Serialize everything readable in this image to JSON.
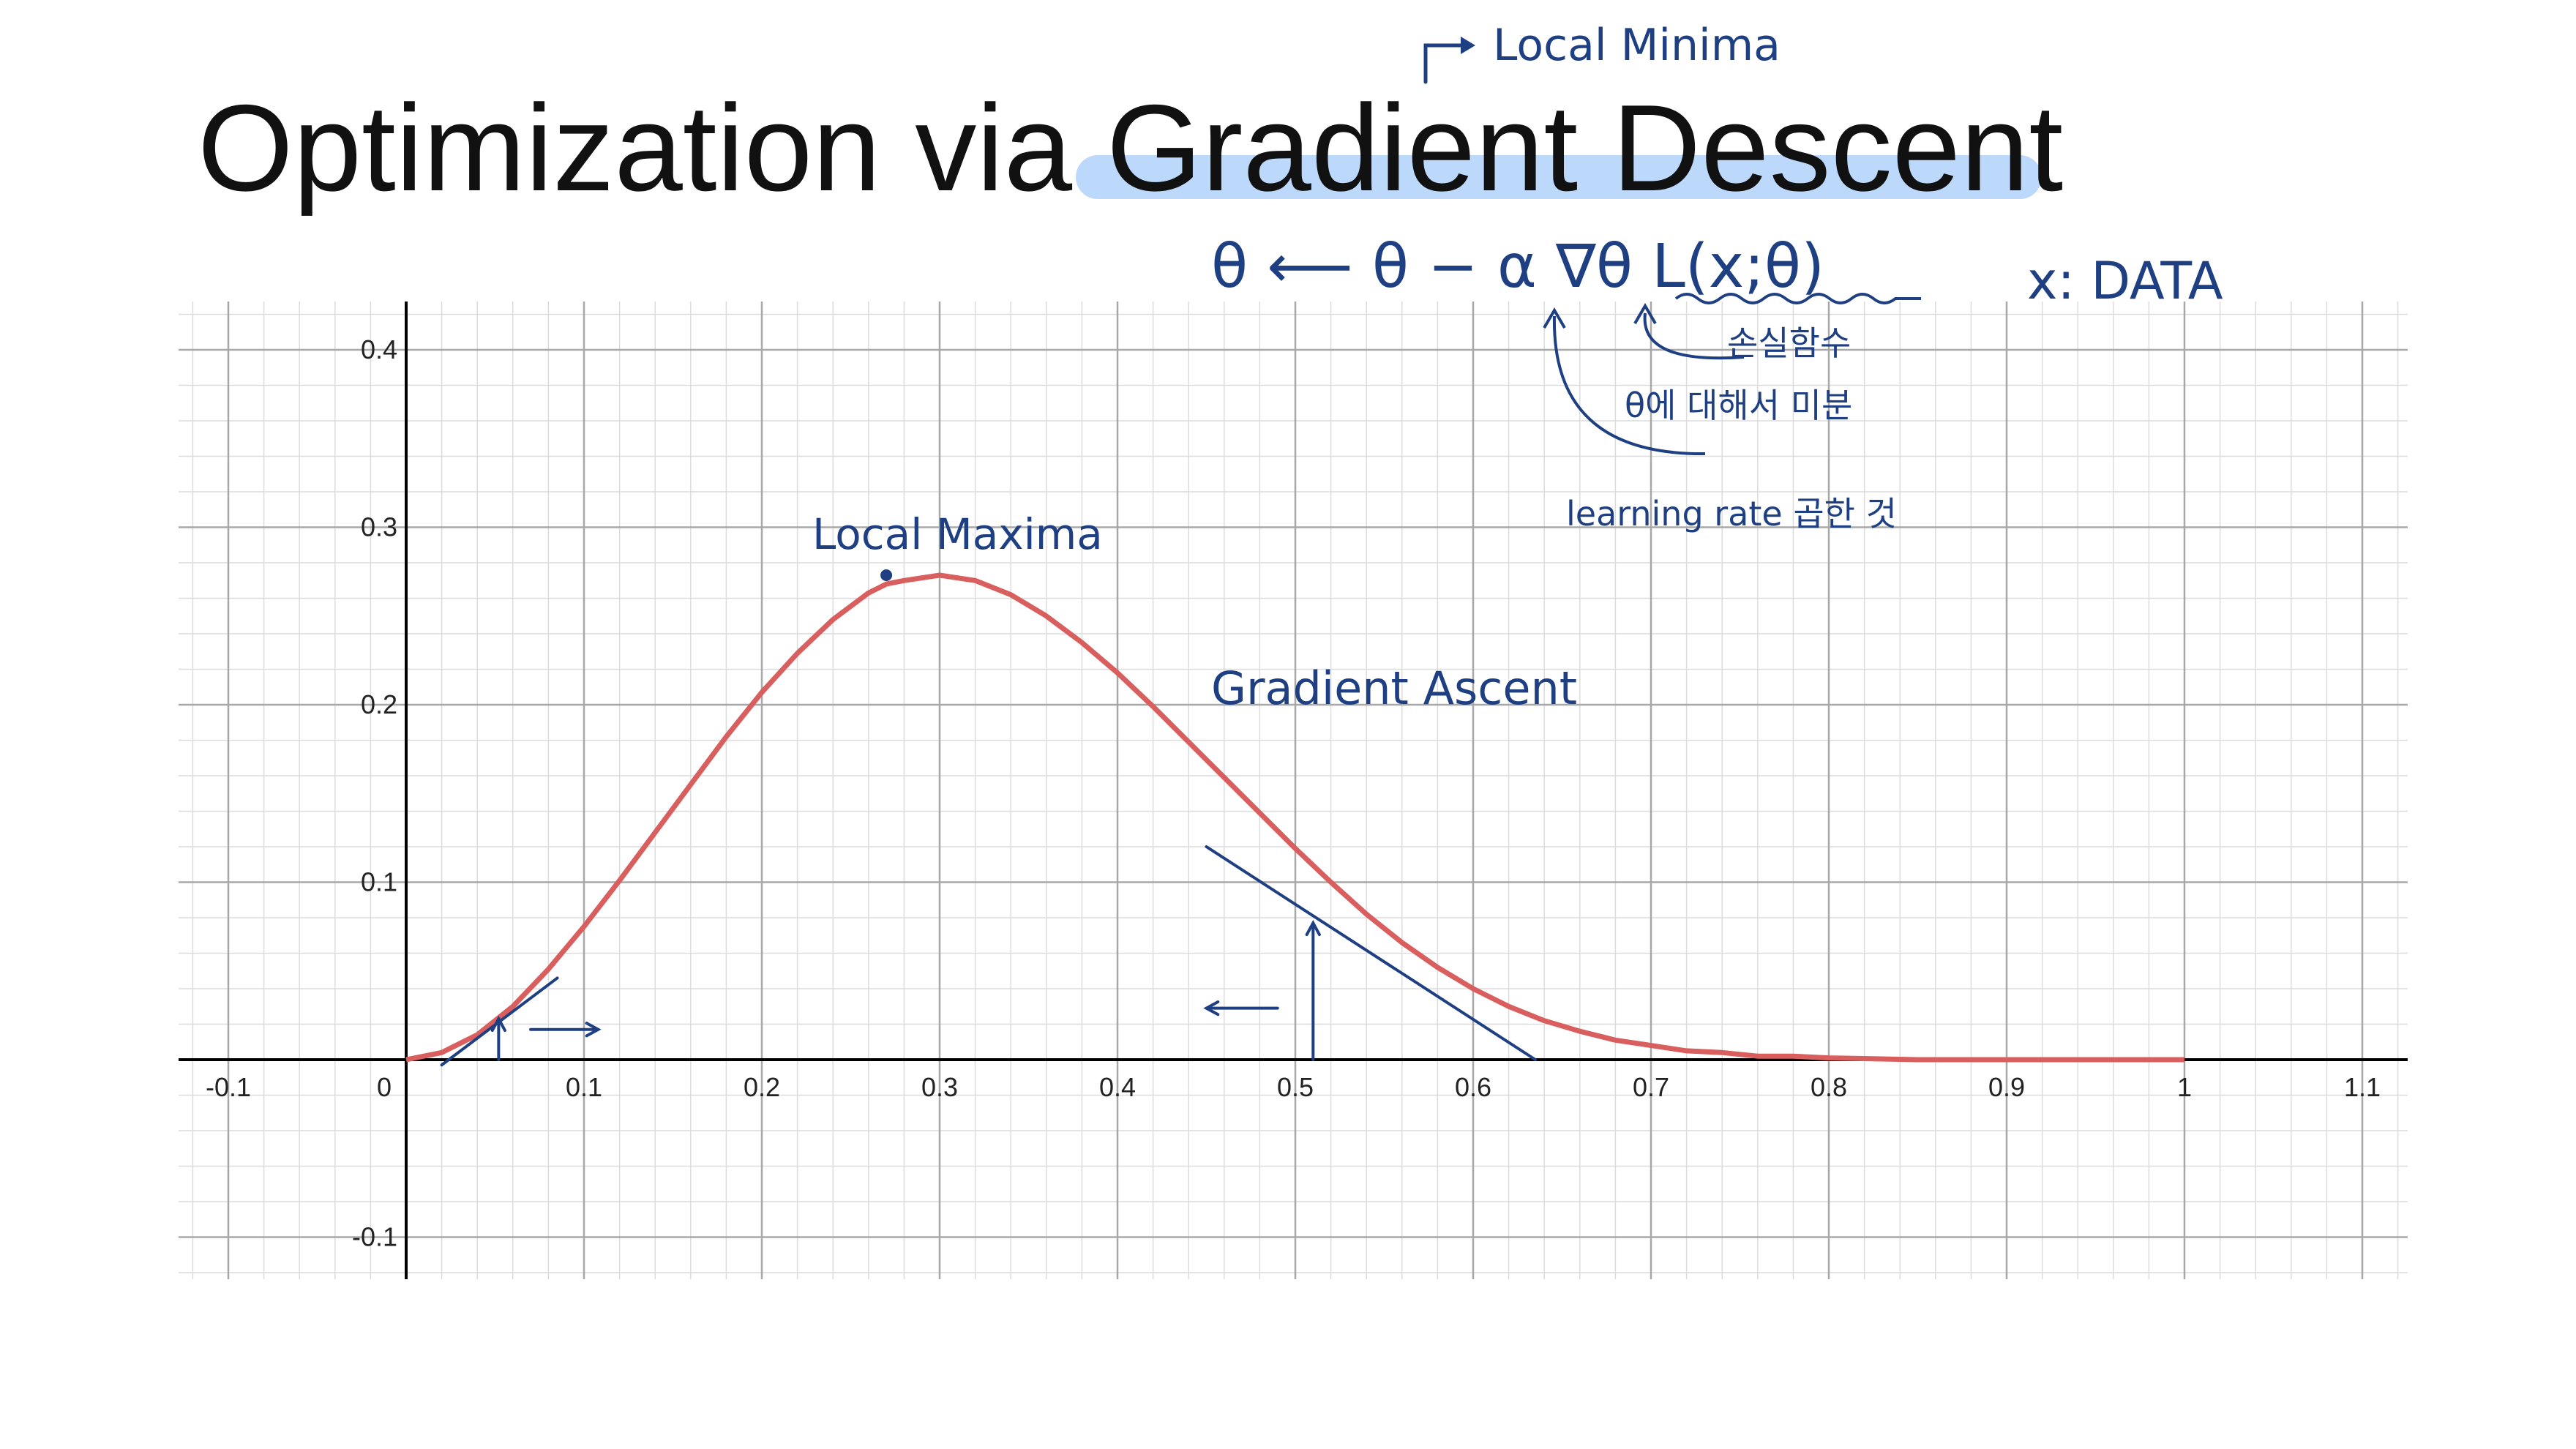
{
  "slide": {
    "title": "Optimization via Gradient Descent"
  },
  "annotations": {
    "local_minima": "Local   Minima",
    "formula": "θ ⟵ θ − α ∇θ L(x;θ)",
    "x_data": "x: DATA",
    "loss_note": "손실함수",
    "derivative_note": "θ에 대해서 미분",
    "lr_note": "learning rate 곱한 것",
    "local_maxima": "Local Maxima",
    "gradient_ascent": "Gradient Ascent"
  },
  "colors": {
    "curve": "#d95f5f",
    "ink": "#1f3f83",
    "highlight": "#bcd9fb",
    "grid_major": "#a8a8a8",
    "grid_minor": "#dcdcdc",
    "axis": "#000000"
  },
  "chart_data": {
    "type": "line",
    "title": "",
    "xlabel": "",
    "ylabel": "",
    "xlim": [
      -0.13,
      1.13
    ],
    "ylim": [
      -0.125,
      0.425
    ],
    "x_ticks": [
      "-0.1",
      "0",
      "0.1",
      "0.2",
      "0.3",
      "0.4",
      "0.5",
      "0.6",
      "0.7",
      "0.8",
      "0.9",
      "1",
      "1.1"
    ],
    "y_ticks": [
      "0.4",
      "0.3",
      "0.2",
      "0.1",
      "-0.1"
    ],
    "grid": true,
    "series": [
      {
        "x": [
          0,
          0.02,
          0.04,
          0.06,
          0.08,
          0.1,
          0.12,
          0.14,
          0.16,
          0.18,
          0.2,
          0.22,
          0.24,
          0.26,
          0.27,
          0.28,
          0.3,
          0.32,
          0.34,
          0.36,
          0.38,
          0.4,
          0.42,
          0.44,
          0.46,
          0.48,
          0.5,
          0.52,
          0.54,
          0.56,
          0.58,
          0.6,
          0.62,
          0.64,
          0.66,
          0.68,
          0.7,
          0.72,
          0.74,
          0.76,
          0.78,
          0.8,
          0.85,
          0.9,
          0.95,
          1.0
        ],
        "y": [
          0.0,
          0.004,
          0.014,
          0.03,
          0.051,
          0.075,
          0.101,
          0.128,
          0.155,
          0.182,
          0.207,
          0.229,
          0.248,
          0.263,
          0.268,
          0.27,
          0.273,
          0.27,
          0.262,
          0.25,
          0.235,
          0.218,
          0.199,
          0.179,
          0.159,
          0.139,
          0.119,
          0.1,
          0.082,
          0.066,
          0.052,
          0.04,
          0.03,
          0.022,
          0.016,
          0.011,
          0.008,
          0.005,
          0.004,
          0.002,
          0.002,
          0.001,
          0.0,
          0.0,
          0.0,
          0.0
        ]
      }
    ],
    "points": [
      {
        "x": 0.27,
        "y": 0.273
      }
    ],
    "tangents": [
      {
        "x0": 0.02,
        "y0": -0.003,
        "x1": 0.085,
        "y1": 0.046
      },
      {
        "x0": 0.45,
        "y0": 0.12,
        "x1": 0.635,
        "y1": 0.0
      }
    ],
    "arrows": [
      {
        "x0": 0.052,
        "y0": 0.0,
        "x1": 0.052,
        "y1": 0.023
      },
      {
        "x0": 0.51,
        "y0": 0.0,
        "x1": 0.51,
        "y1": 0.077
      },
      {
        "x0": 0.07,
        "y0": 0.017,
        "x1": 0.108,
        "y1": 0.017
      },
      {
        "x0": 0.49,
        "y0": 0.029,
        "x1": 0.45,
        "y1": 0.029
      }
    ]
  }
}
